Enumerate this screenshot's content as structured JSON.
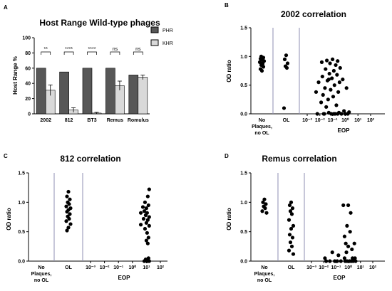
{
  "figure": {
    "panel_letters": [
      "A",
      "B",
      "C",
      "D"
    ]
  },
  "colors": {
    "phr": "#575757",
    "khr": "#d9d9d9",
    "dot": "#000000",
    "divider": "#8f8fb3",
    "axis": "#000000"
  },
  "chart_data": [
    {
      "panel": "A",
      "type": "bar",
      "title": "Host Range Wild-type phages",
      "xlabel": "",
      "ylabel": "Host Range %",
      "ylim": [
        0,
        100
      ],
      "yticks": [
        "0",
        "20",
        "40",
        "60",
        "80",
        "100"
      ],
      "categories": [
        "2002",
        "812",
        "BT3",
        "Remus",
        "Romulus"
      ],
      "series": [
        {
          "name": "PHR",
          "values": [
            60,
            55,
            60,
            60,
            51
          ],
          "errors": [
            0,
            0,
            0,
            0,
            0
          ]
        },
        {
          "name": "KHR",
          "values": [
            31,
            5,
            1,
            37,
            48
          ],
          "errors": [
            7,
            3,
            1,
            6,
            3
          ]
        }
      ],
      "significance": [
        "**",
        "****",
        "****",
        "ns",
        "ns"
      ],
      "legend": "top-right",
      "grid": false
    },
    {
      "panel": "B",
      "type": "scatter",
      "title": "2002 correlation",
      "ylabel": "OD ratio",
      "xlabel": "EOP",
      "ylim": [
        0,
        1.5
      ],
      "yticks": [
        "0.0",
        "0.5",
        "1.0",
        "1.5"
      ],
      "group_labels": [
        "No Plaques, no OL",
        "OL"
      ],
      "eop_ticks": [
        "10⁻³",
        "10⁻²",
        "10⁻¹",
        "10⁰",
        "10¹",
        "10²"
      ],
      "xlim_log10": [
        -3,
        2
      ],
      "groups": {
        "no_plaques": [
          0.75,
          0.78,
          0.82,
          0.85,
          0.87,
          0.9,
          0.92,
          0.94,
          0.96,
          0.98,
          1.0,
          0.88
        ],
        "ol": [
          1.02,
          0.95,
          0.88,
          0.83,
          0.8,
          0.1
        ]
      },
      "eop_points": [
        {
          "x": -2.3,
          "y": 0.38
        },
        {
          "x": -2.1,
          "y": 0.55
        },
        {
          "x": -2.2,
          "y": 0.0
        },
        {
          "x": -1.9,
          "y": 0.2
        },
        {
          "x": -1.85,
          "y": 0.9
        },
        {
          "x": -1.8,
          "y": 0.65
        },
        {
          "x": -1.75,
          "y": 0.33
        },
        {
          "x": -1.7,
          "y": 0.0
        },
        {
          "x": -1.6,
          "y": 0.45
        },
        {
          "x": -1.55,
          "y": 0.78
        },
        {
          "x": -1.5,
          "y": 0.12
        },
        {
          "x": -1.45,
          "y": 0.93
        },
        {
          "x": -1.4,
          "y": 0.58
        },
        {
          "x": -1.35,
          "y": 0.25
        },
        {
          "x": -1.3,
          "y": 0.02
        },
        {
          "x": -1.25,
          "y": 0.7
        },
        {
          "x": -1.2,
          "y": 0.88
        },
        {
          "x": -1.15,
          "y": 0.42
        },
        {
          "x": -1.1,
          "y": 0.0
        },
        {
          "x": -1.05,
          "y": 0.62
        },
        {
          "x": -1.0,
          "y": 0.95
        },
        {
          "x": -0.95,
          "y": 0.3
        },
        {
          "x": -0.9,
          "y": 0.75
        },
        {
          "x": -0.85,
          "y": 0.5
        },
        {
          "x": -0.8,
          "y": 0.0
        },
        {
          "x": -0.75,
          "y": 0.85
        },
        {
          "x": -0.7,
          "y": 0.15
        },
        {
          "x": -0.65,
          "y": 0.68
        },
        {
          "x": -0.6,
          "y": 0.92
        },
        {
          "x": -0.55,
          "y": 0.38
        },
        {
          "x": -0.5,
          "y": 0.02
        },
        {
          "x": -0.45,
          "y": 0.55
        },
        {
          "x": -0.4,
          "y": 0.8
        },
        {
          "x": -0.3,
          "y": 0.0
        },
        {
          "x": -0.2,
          "y": 0.6
        },
        {
          "x": -0.1,
          "y": 0.05
        },
        {
          "x": 0.0,
          "y": 0.0
        },
        {
          "x": 0.1,
          "y": 0.45
        },
        {
          "x": 0.2,
          "y": 0.0
        },
        {
          "x": 0.3,
          "y": 0.03
        },
        {
          "x": -1.3,
          "y": 0.6
        },
        {
          "x": -0.9,
          "y": 0.0
        },
        {
          "x": -0.6,
          "y": 0.0
        },
        {
          "x": -1.65,
          "y": 0.0
        }
      ]
    },
    {
      "panel": "C",
      "type": "scatter",
      "title": "812 correlation",
      "ylabel": "OD ratio",
      "xlabel": "EOP",
      "ylim": [
        0,
        1.5
      ],
      "yticks": [
        "0.0",
        "0.5",
        "1.0",
        "1.5"
      ],
      "group_labels": [
        "No Plaques, no OL",
        "OL"
      ],
      "eop_ticks": [
        "10⁻³",
        "10⁻²",
        "10⁻¹",
        "10⁰",
        "10¹",
        "10²"
      ],
      "xlim_log10": [
        -3,
        2
      ],
      "groups": {
        "no_plaques": [],
        "ol": [
          1.18,
          1.1,
          1.05,
          1.0,
          0.97,
          0.93,
          0.9,
          0.87,
          0.84,
          0.8,
          0.76,
          0.72,
          0.68,
          0.63,
          0.57,
          0.52
        ]
      },
      "eop_points": [
        {
          "x": 0.6,
          "y": 0.82
        },
        {
          "x": 0.6,
          "y": 0.62
        },
        {
          "x": 0.75,
          "y": 0.92
        },
        {
          "x": 0.8,
          "y": 0.72
        },
        {
          "x": 0.85,
          "y": 0.85
        },
        {
          "x": 0.9,
          "y": 1.0
        },
        {
          "x": 0.9,
          "y": 0.55
        },
        {
          "x": 0.95,
          "y": 0.78
        },
        {
          "x": 1.0,
          "y": 0.9
        },
        {
          "x": 1.0,
          "y": 0.65
        },
        {
          "x": 1.0,
          "y": 0.02
        },
        {
          "x": 1.05,
          "y": 0.48
        },
        {
          "x": 1.05,
          "y": 0.82
        },
        {
          "x": 1.1,
          "y": 1.1
        },
        {
          "x": 1.1,
          "y": 0.7
        },
        {
          "x": 1.1,
          "y": 0.3
        },
        {
          "x": 1.1,
          "y": 0.0
        },
        {
          "x": 1.15,
          "y": 0.95
        },
        {
          "x": 1.15,
          "y": 0.4
        },
        {
          "x": 1.15,
          "y": 0.05
        },
        {
          "x": 1.2,
          "y": 0.6
        },
        {
          "x": 1.2,
          "y": 1.22
        },
        {
          "x": 1.2,
          "y": 0.75
        },
        {
          "x": 1.2,
          "y": 0.0
        },
        {
          "x": 0.95,
          "y": 0.03
        },
        {
          "x": 1.05,
          "y": 0.0
        },
        {
          "x": 0.85,
          "y": 0.0
        },
        {
          "x": 1.0,
          "y": 0.35
        }
      ]
    },
    {
      "panel": "D",
      "type": "scatter",
      "title": "Remus correlation",
      "ylabel": "OD ratio",
      "xlabel": "EOP",
      "ylim": [
        0,
        1.5
      ],
      "yticks": [
        "0.0",
        "0.5",
        "1.0",
        "1.5"
      ],
      "group_labels": [
        "No Plaques, no OL",
        "OL"
      ],
      "eop_ticks": [
        "10⁻³",
        "10⁻²",
        "10⁻¹",
        "10⁰",
        "10¹",
        "10²"
      ],
      "xlim_log10": [
        -3,
        2
      ],
      "groups": {
        "no_plaques": [
          1.05,
          1.0,
          0.97,
          0.93,
          0.9,
          0.85,
          0.82
        ],
        "ol": [
          1.0,
          0.95,
          0.9,
          0.85,
          0.8,
          0.7,
          0.6,
          0.55,
          0.45,
          0.4,
          0.32,
          0.25,
          0.18,
          0.12
        ]
      },
      "eop_points": [
        {
          "x": -1.9,
          "y": 0.05
        },
        {
          "x": -1.8,
          "y": 0.0
        },
        {
          "x": -1.5,
          "y": 0.0
        },
        {
          "x": -1.3,
          "y": 0.15
        },
        {
          "x": -1.1,
          "y": 0.0
        },
        {
          "x": -0.9,
          "y": 0.0
        },
        {
          "x": -0.8,
          "y": 0.1
        },
        {
          "x": -0.6,
          "y": 0.0
        },
        {
          "x": -0.4,
          "y": 0.95
        },
        {
          "x": -0.3,
          "y": 0.42
        },
        {
          "x": -0.3,
          "y": 0.05
        },
        {
          "x": -0.25,
          "y": 0.0
        },
        {
          "x": -0.2,
          "y": 0.3
        },
        {
          "x": -0.15,
          "y": 0.15
        },
        {
          "x": -0.1,
          "y": 0.6
        },
        {
          "x": -0.1,
          "y": 0.0
        },
        {
          "x": 0.0,
          "y": 0.95
        },
        {
          "x": 0.0,
          "y": 0.25
        },
        {
          "x": 0.1,
          "y": 0.0
        },
        {
          "x": 0.15,
          "y": 0.5
        },
        {
          "x": 0.2,
          "y": 0.82
        },
        {
          "x": 0.25,
          "y": 0.0
        },
        {
          "x": 0.3,
          "y": 0.2
        },
        {
          "x": 0.35,
          "y": 0.05
        },
        {
          "x": 0.4,
          "y": 0.0
        },
        {
          "x": 0.5,
          "y": 0.3
        },
        {
          "x": 0.55,
          "y": 0.05
        },
        {
          "x": 0.6,
          "y": 0.0
        }
      ]
    }
  ]
}
